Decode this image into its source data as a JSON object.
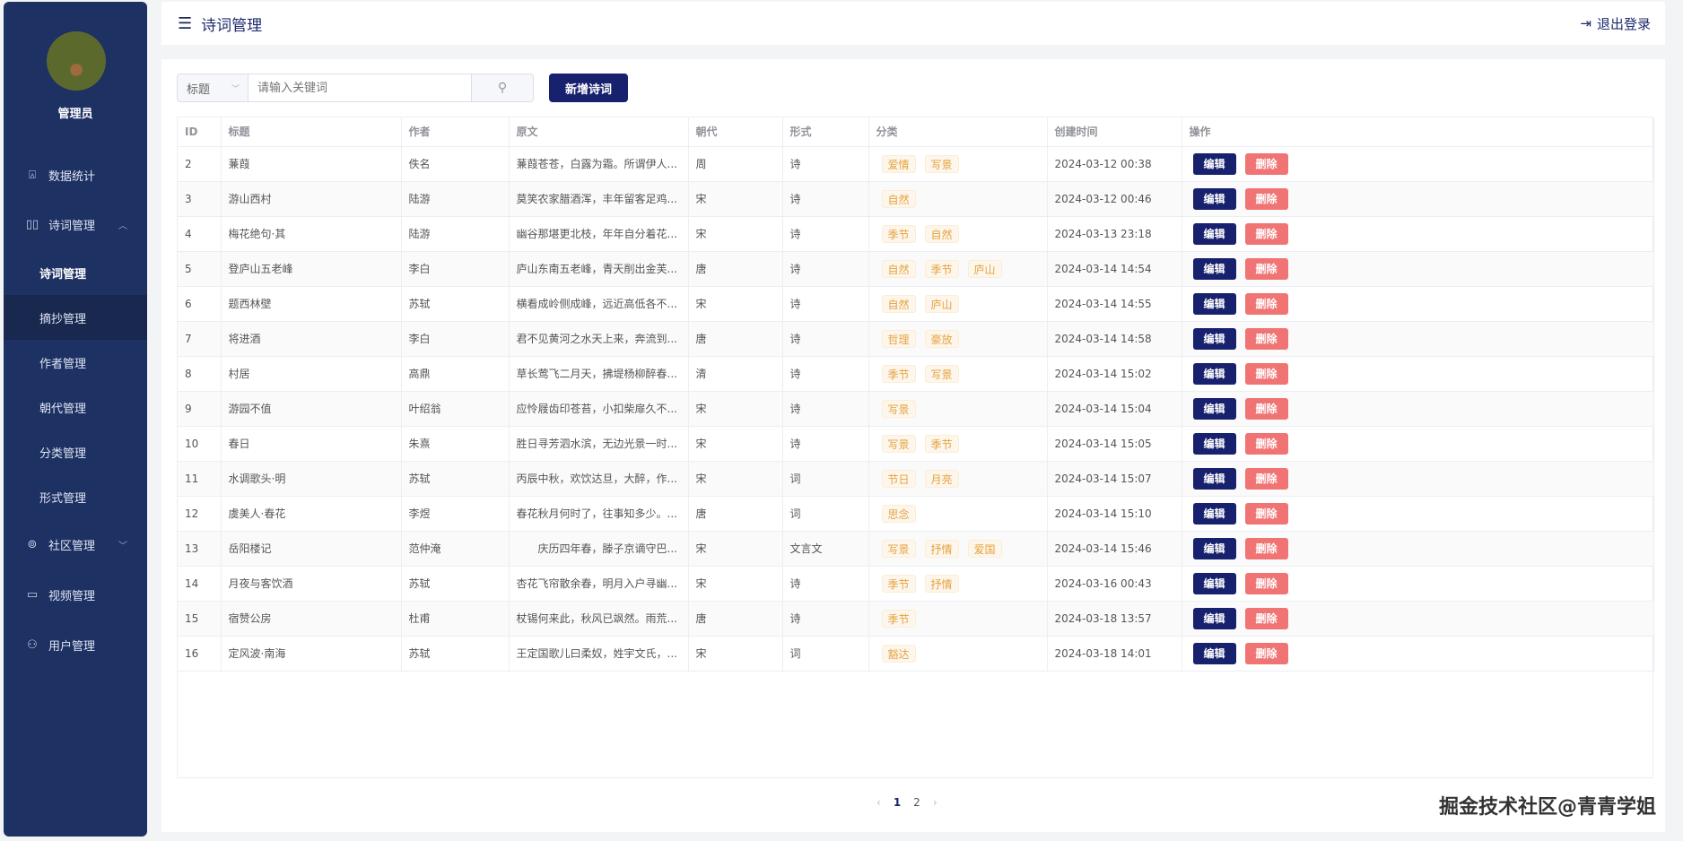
{
  "sidebar": {
    "username": "管理员",
    "items": [
      {
        "label": "数据统计",
        "icon": "chart-board-icon"
      },
      {
        "label": "诗词管理",
        "icon": "book-icon",
        "expanded": true
      },
      {
        "label": "诗词管理",
        "sub": true,
        "active": true
      },
      {
        "label": "摘抄管理",
        "sub": true
      },
      {
        "label": "作者管理",
        "sub": true
      },
      {
        "label": "朝代管理",
        "sub": true
      },
      {
        "label": "分类管理",
        "sub": true
      },
      {
        "label": "形式管理",
        "sub": true
      },
      {
        "label": "社区管理",
        "icon": "community-icon",
        "expanded": false
      },
      {
        "label": "视频管理",
        "icon": "video-icon"
      },
      {
        "label": "用户管理",
        "icon": "user-icon"
      }
    ]
  },
  "header": {
    "title": "诗词管理",
    "logout": "退出登录"
  },
  "toolbar": {
    "select_value": "标题",
    "search_placeholder": "请输入关键词",
    "add_label": "新增诗词"
  },
  "table": {
    "columns": [
      "ID",
      "标题",
      "作者",
      "原文",
      "朝代",
      "形式",
      "分类",
      "创建时间",
      "操作"
    ],
    "edit_label": "编辑",
    "delete_label": "删除",
    "rows": [
      {
        "id": "2",
        "title": "蒹葭",
        "author": "佚名",
        "text": "蒹葭苍苍，白露为霜。所谓伊人...",
        "dynasty": "周",
        "form": "诗",
        "tags": [
          "爱情",
          "写景"
        ],
        "created": "2024-03-12 00:38"
      },
      {
        "id": "3",
        "title": "游山西村",
        "author": "陆游",
        "text": "莫笑农家腊酒浑，丰年留客足鸡...",
        "dynasty": "宋",
        "form": "诗",
        "tags": [
          "自然"
        ],
        "created": "2024-03-12 00:46"
      },
      {
        "id": "4",
        "title": "梅花绝句·其",
        "author": "陆游",
        "text": "幽谷那堪更北枝，年年自分着花...",
        "dynasty": "宋",
        "form": "诗",
        "tags": [
          "季节",
          "自然"
        ],
        "created": "2024-03-13 23:18"
      },
      {
        "id": "5",
        "title": "登庐山五老峰",
        "author": "李白",
        "text": "庐山东南五老峰，青天削出金芙...",
        "dynasty": "唐",
        "form": "诗",
        "tags": [
          "自然",
          "季节",
          "庐山"
        ],
        "created": "2024-03-14 14:54"
      },
      {
        "id": "6",
        "title": "题西林壁",
        "author": "苏轼",
        "text": "横看成岭侧成峰，远近高低各不...",
        "dynasty": "宋",
        "form": "诗",
        "tags": [
          "自然",
          "庐山"
        ],
        "created": "2024-03-14 14:55"
      },
      {
        "id": "7",
        "title": "将进酒",
        "author": "李白",
        "text": "君不见黄河之水天上来，奔流到...",
        "dynasty": "唐",
        "form": "诗",
        "tags": [
          "哲理",
          "豪放"
        ],
        "created": "2024-03-14 14:58"
      },
      {
        "id": "8",
        "title": "村居",
        "author": "高鼎",
        "text": "草长莺飞二月天，拂堤杨柳醉春...",
        "dynasty": "清",
        "form": "诗",
        "tags": [
          "季节",
          "写景"
        ],
        "created": "2024-03-14 15:02"
      },
      {
        "id": "9",
        "title": "游园不值",
        "author": "叶绍翁",
        "text": "应怜屐齿印苍苔，小扣柴扉久不...",
        "dynasty": "宋",
        "form": "诗",
        "tags": [
          "写景"
        ],
        "created": "2024-03-14 15:04"
      },
      {
        "id": "10",
        "title": "春日",
        "author": "朱熹",
        "text": "胜日寻芳泗水滨，无边光景一时...",
        "dynasty": "宋",
        "form": "诗",
        "tags": [
          "写景",
          "季节"
        ],
        "created": "2024-03-14 15:05"
      },
      {
        "id": "11",
        "title": "水调歌头·明",
        "author": "苏轼",
        "text": "丙辰中秋，欢饮达旦，大醉，作...",
        "dynasty": "宋",
        "form": "词",
        "tags": [
          "节日",
          "月亮"
        ],
        "created": "2024-03-14 15:07"
      },
      {
        "id": "12",
        "title": "虞美人·春花",
        "author": "李煜",
        "text": "春花秋月何时了，往事知多少。...",
        "dynasty": "唐",
        "form": "词",
        "tags": [
          "思念"
        ],
        "created": "2024-03-14 15:10"
      },
      {
        "id": "13",
        "title": "岳阳楼记",
        "author": "范仲淹",
        "text": "　　庆历四年春，滕子京谪守巴...",
        "dynasty": "宋",
        "form": "文言文",
        "tags": [
          "写景",
          "抒情",
          "爱国"
        ],
        "created": "2024-03-14 15:46"
      },
      {
        "id": "14",
        "title": "月夜与客饮酒",
        "author": "苏轼",
        "text": "杏花飞帘散余春，明月入户寻幽...",
        "dynasty": "宋",
        "form": "诗",
        "tags": [
          "季节",
          "抒情"
        ],
        "created": "2024-03-16 00:43"
      },
      {
        "id": "15",
        "title": "宿赞公房",
        "author": "杜甫",
        "text": "杖锡何来此，秋风已飒然。雨荒...",
        "dynasty": "唐",
        "form": "诗",
        "tags": [
          "季节"
        ],
        "created": "2024-03-18 13:57"
      },
      {
        "id": "16",
        "title": "定风波·南海",
        "author": "苏轼",
        "text": "王定国歌儿曰柔奴，姓宇文氏，...",
        "dynasty": "宋",
        "form": "词",
        "tags": [
          "豁达"
        ],
        "created": "2024-03-18 14:01"
      }
    ]
  },
  "pagination": {
    "pages": [
      "1",
      "2"
    ],
    "current": "1"
  },
  "watermark": "掘金技术社区@青青学姐",
  "colors": {
    "sidebar": "#1e3163",
    "primary": "#17216e",
    "danger": "#f17474",
    "tag": "#e6a23c"
  }
}
